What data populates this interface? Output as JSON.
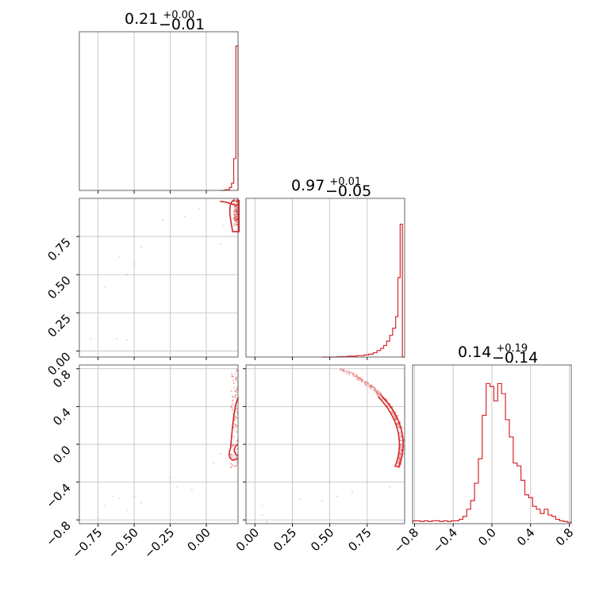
{
  "chart_data": [
    {
      "type": "histogram",
      "panel": "diag-1",
      "title": {
        "value": "0.21",
        "plus": "+0.00",
        "minus": "−0.01"
      },
      "xlim": [
        -0.88,
        0.22
      ],
      "bin_edges": [
        0.1,
        0.13,
        0.16,
        0.175,
        0.19,
        0.205,
        0.22
      ],
      "counts": [
        0.0,
        0.005,
        0.02,
        0.05,
        0.22,
        1.0
      ]
    },
    {
      "type": "histogram",
      "panel": "diag-2",
      "title": {
        "value": "0.97",
        "plus": "+0.01",
        "minus": "−0.05"
      },
      "xlim": [
        -0.06,
        1.0
      ],
      "bin_edges": [
        0.45,
        0.55,
        0.62,
        0.68,
        0.73,
        0.76,
        0.79,
        0.815,
        0.84,
        0.86,
        0.88,
        0.9,
        0.92,
        0.94,
        0.955,
        0.97,
        0.985,
        1.0
      ],
      "counts": [
        0.0,
        0.003,
        0.006,
        0.01,
        0.015,
        0.02,
        0.03,
        0.045,
        0.06,
        0.08,
        0.11,
        0.15,
        0.2,
        0.28,
        0.55,
        0.92,
        0.0
      ]
    },
    {
      "type": "histogram",
      "panel": "diag-3",
      "title": {
        "value": "0.14",
        "plus": "+0.19",
        "minus": "−0.14"
      },
      "xlim": [
        -0.82,
        0.82
      ],
      "bin_edges": [
        -0.82,
        -0.78,
        -0.74,
        -0.7,
        -0.66,
        -0.62,
        -0.58,
        -0.54,
        -0.5,
        -0.46,
        -0.42,
        -0.38,
        -0.34,
        -0.3,
        -0.26,
        -0.22,
        -0.18,
        -0.14,
        -0.1,
        -0.06,
        -0.02,
        0.02,
        0.06,
        0.1,
        0.14,
        0.18,
        0.22,
        0.26,
        0.3,
        0.34,
        0.38,
        0.42,
        0.46,
        0.5,
        0.54,
        0.58,
        0.62,
        0.66,
        0.7,
        0.74,
        0.78,
        0.82
      ],
      "counts": [
        0.02,
        0.02,
        0.015,
        0.02,
        0.015,
        0.02,
        0.02,
        0.015,
        0.02,
        0.015,
        0.02,
        0.02,
        0.03,
        0.05,
        0.1,
        0.16,
        0.28,
        0.45,
        0.75,
        0.97,
        0.95,
        0.85,
        0.97,
        0.9,
        0.72,
        0.6,
        0.42,
        0.4,
        0.3,
        0.2,
        0.18,
        0.12,
        0.1,
        0.07,
        0.1,
        0.06,
        0.05,
        0.03,
        0.02,
        0.015,
        0.01
      ]
    }
  ],
  "axes": {
    "row2_y_ticks": [
      "0.00",
      "0.25",
      "0.50",
      "0.75"
    ],
    "row3_y_ticks": [
      "−0.8",
      "−0.4",
      "0.0",
      "0.4",
      "0.8"
    ],
    "col1_x_ticks": [
      "−0.75",
      "−0.50",
      "−0.25",
      "0.00"
    ],
    "col2_x_ticks": [
      "0.00",
      "0.25",
      "0.50",
      "0.75"
    ],
    "col3_x_ticks": [
      "−0.8",
      "−0.4",
      "0.0",
      "0.4",
      "0.8"
    ],
    "grid": true
  },
  "colors": {
    "series": "#d62728",
    "grid": "#bdbdbd",
    "frame": "#555555"
  }
}
